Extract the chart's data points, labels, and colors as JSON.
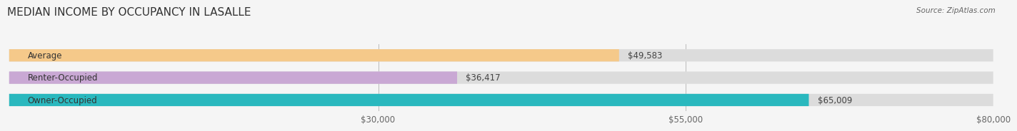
{
  "title": "MEDIAN INCOME BY OCCUPANCY IN LASALLE",
  "source": "Source: ZipAtlas.com",
  "categories": [
    "Owner-Occupied",
    "Renter-Occupied",
    "Average"
  ],
  "values": [
    65009,
    36417,
    49583
  ],
  "bar_colors": [
    "#2ab8be",
    "#c9a8d4",
    "#f5c98a"
  ],
  "label_texts": [
    "$65,009",
    "$36,417",
    "$49,583"
  ],
  "xlim": [
    0,
    80000
  ],
  "xticks": [
    30000,
    55000,
    80000
  ],
  "xtick_labels": [
    "$30,000",
    "$55,000",
    "$80,000"
  ],
  "bar_height": 0.55,
  "bg_color": "#f5f5f5",
  "bar_bg_color": "#dcdcdc",
  "title_fontsize": 11,
  "label_fontsize": 8.5,
  "tick_fontsize": 8.5
}
